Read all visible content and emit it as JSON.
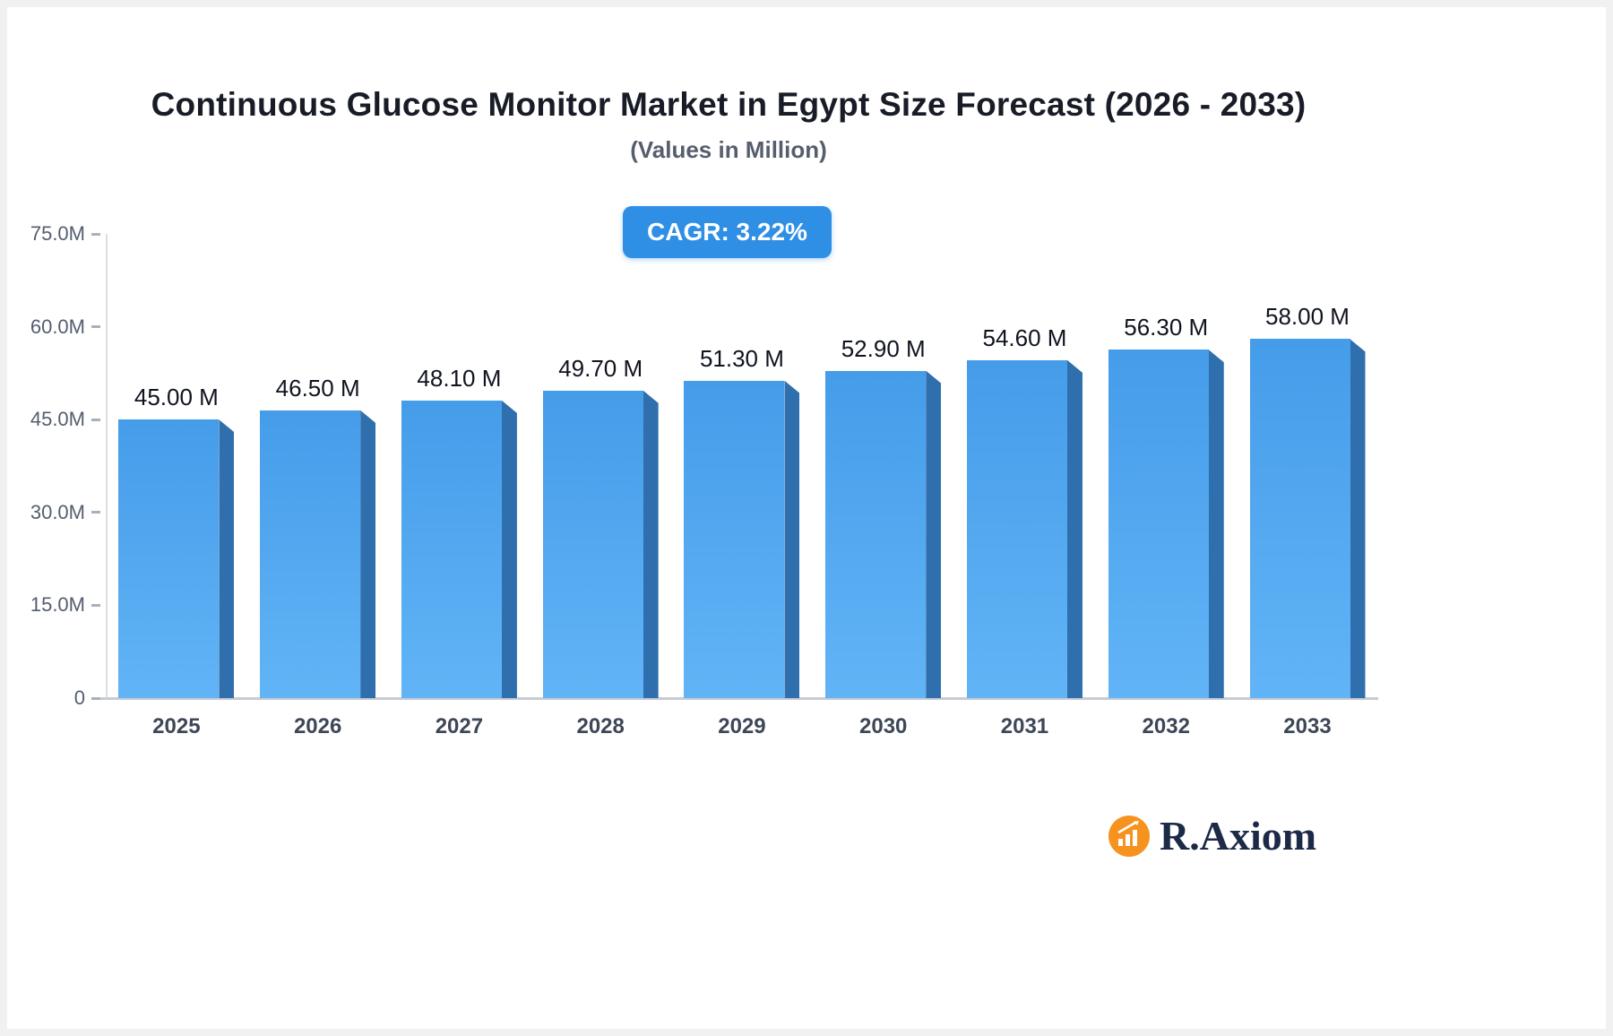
{
  "page": {
    "title": "Continuous Glucose Monitor Market in Egypt Size Forecast (2026 - 2033)",
    "subtitle": "(Values in Million)",
    "cagr_label": "CAGR: 3.22%",
    "brand": "R.Axiom"
  },
  "chart_data": {
    "type": "bar",
    "title": "Continuous Glucose Monitor Market in Egypt Size Forecast (2026 - 2033)",
    "subtitle": "(Values in Million)",
    "annotation": "CAGR: 3.22%",
    "categories": [
      "2025",
      "2026",
      "2027",
      "2028",
      "2029",
      "2030",
      "2031",
      "2032",
      "2033"
    ],
    "values": [
      45.0,
      46.5,
      48.1,
      49.7,
      51.3,
      52.9,
      54.6,
      56.3,
      58.0
    ],
    "value_labels": [
      "45.00 M",
      "46.50 M",
      "48.10 M",
      "49.70 M",
      "51.30 M",
      "52.90 M",
      "54.60 M",
      "56.30 M",
      "58.00 M"
    ],
    "xlabel": "",
    "ylabel": "",
    "ylim": [
      0,
      75
    ],
    "grid": false,
    "legend": false,
    "y_ticks": [
      {
        "value": 75,
        "label": "75.0M"
      },
      {
        "value": 60,
        "label": "60.0M"
      },
      {
        "value": 45,
        "label": "45.0M"
      },
      {
        "value": 30,
        "label": "30.0M"
      },
      {
        "value": 15,
        "label": "15.0M"
      },
      {
        "value": 0,
        "label": "0"
      }
    ]
  },
  "colors": {
    "bar_top": "#459ce9",
    "bar_bottom": "#61b4f6",
    "bar_side": "#2f6fae",
    "badge_bg": "#2f8fe5",
    "title_color": "#181c26",
    "subtitle_color": "#565e6d",
    "axis_color": "#555e6e",
    "xlabel_color": "#3e4757",
    "value_color": "#10141f",
    "brand_orange": "#f6921e",
    "brand_navy": "#1c2947"
  }
}
